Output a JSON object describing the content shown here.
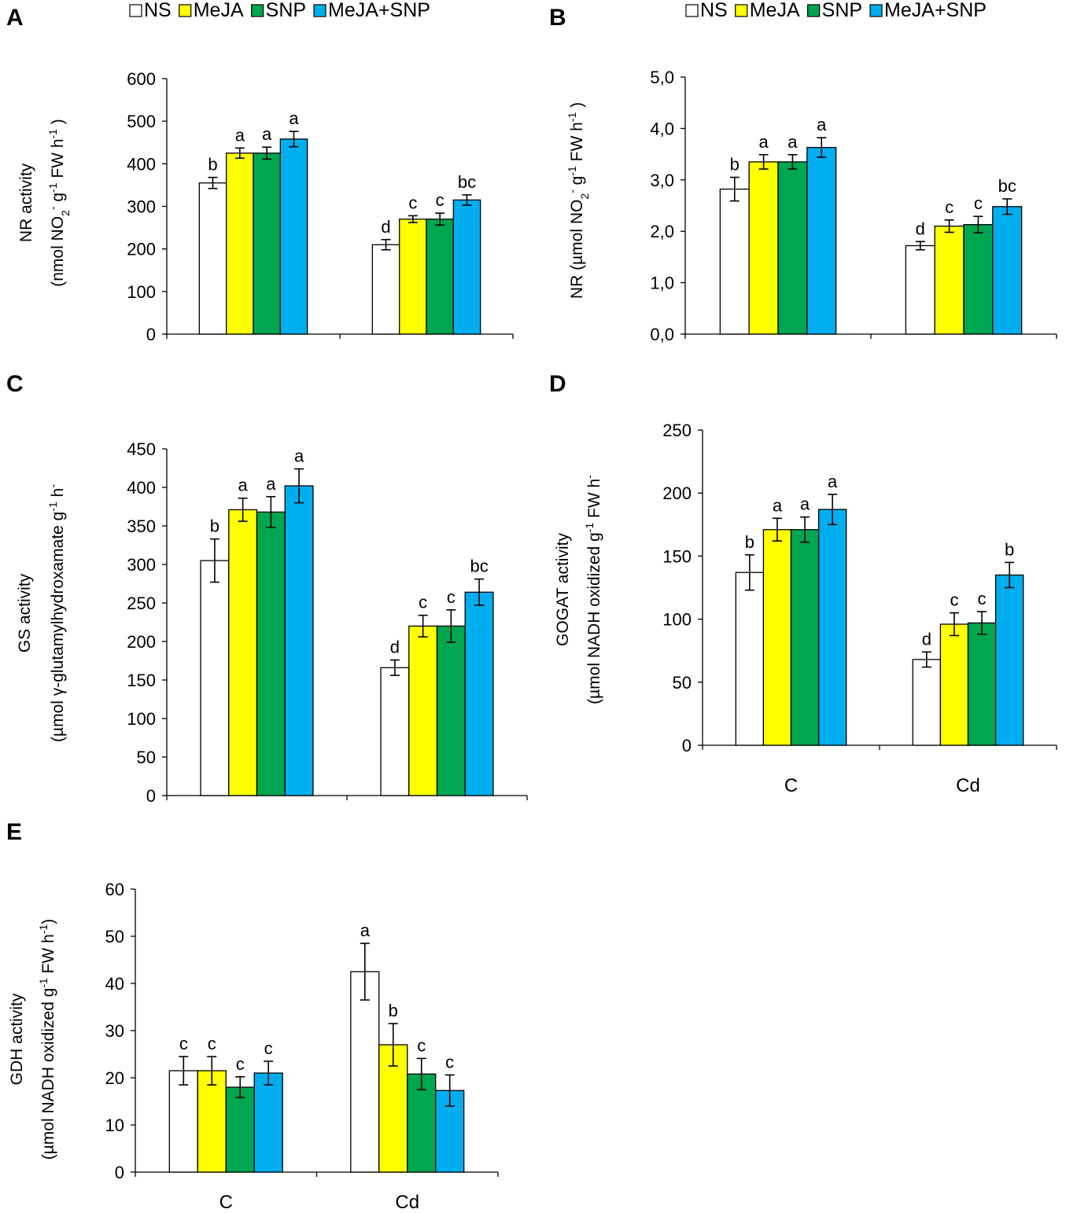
{
  "figure": {
    "legend": [
      {
        "name": "NS",
        "color": "#ffffff"
      },
      {
        "name": "MeJA",
        "color": "#ffff00"
      },
      {
        "name": "SNP",
        "color": "#00a650"
      },
      {
        "name": "MeJA+SNP",
        "color": "#00aeef"
      }
    ]
  },
  "chart_data": [
    {
      "panel": "A",
      "type": "bar",
      "ylabel_line1": "NR activity",
      "ylabel_line2": "(nmol NO2- g-1 FW h-1 )",
      "ylim": [
        0,
        600
      ],
      "yticks": [
        "0",
        "100",
        "200",
        "300",
        "400",
        "500",
        "600"
      ],
      "categories": [
        "C",
        "Cd"
      ],
      "show_category_labels": false,
      "series": [
        {
          "name": "NS",
          "values": [
            355,
            210
          ],
          "errors": [
            13,
            12
          ],
          "letters": [
            "b",
            "d"
          ]
        },
        {
          "name": "MeJA",
          "values": [
            425,
            270
          ],
          "errors": [
            12,
            8
          ],
          "letters": [
            "a",
            "c"
          ]
        },
        {
          "name": "SNP",
          "values": [
            425,
            270
          ],
          "errors": [
            14,
            14
          ],
          "letters": [
            "a",
            "c"
          ]
        },
        {
          "name": "MeJA+SNP",
          "values": [
            458,
            315
          ],
          "errors": [
            18,
            12
          ],
          "letters": [
            "a",
            "bc"
          ]
        }
      ]
    },
    {
      "panel": "B",
      "type": "bar",
      "ylabel_line1": "NR (µmol NO2- g-1 FW h-1 )",
      "ylabel_line2": "",
      "ylim": [
        0,
        5
      ],
      "yticks": [
        "0,0",
        "1,0",
        "2,0",
        "3,0",
        "4,0",
        "5,0"
      ],
      "categories": [
        "C",
        "Cd"
      ],
      "show_category_labels": false,
      "series": [
        {
          "name": "NS",
          "values": [
            2.82,
            1.72
          ],
          "errors": [
            0.23,
            0.08
          ],
          "letters": [
            "b",
            "d"
          ]
        },
        {
          "name": "MeJA",
          "values": [
            3.35,
            2.1
          ],
          "errors": [
            0.14,
            0.12
          ],
          "letters": [
            "a",
            "c"
          ]
        },
        {
          "name": "SNP",
          "values": [
            3.35,
            2.13
          ],
          "errors": [
            0.14,
            0.16
          ],
          "letters": [
            "a",
            "c"
          ]
        },
        {
          "name": "MeJA+SNP",
          "values": [
            3.63,
            2.48
          ],
          "errors": [
            0.19,
            0.15
          ],
          "letters": [
            "a",
            "bc"
          ]
        }
      ]
    },
    {
      "panel": "C",
      "type": "bar",
      "ylabel_line1": "GS activity",
      "ylabel_line2": "(µmol γ-glutamylhydroxamate g-1 h-",
      "ylim": [
        0,
        450
      ],
      "yticks": [
        "0",
        "50",
        "100",
        "150",
        "200",
        "250",
        "300",
        "350",
        "400",
        "450"
      ],
      "categories": [
        "C",
        "Cd"
      ],
      "show_category_labels": false,
      "series": [
        {
          "name": "NS",
          "values": [
            305,
            166
          ],
          "errors": [
            28,
            10
          ],
          "letters": [
            "b",
            "d"
          ]
        },
        {
          "name": "MeJA",
          "values": [
            371,
            220
          ],
          "errors": [
            15,
            14
          ],
          "letters": [
            "a",
            "c"
          ]
        },
        {
          "name": "SNP",
          "values": [
            368,
            220
          ],
          "errors": [
            20,
            21
          ],
          "letters": [
            "a",
            "c"
          ]
        },
        {
          "name": "MeJA+SNP",
          "values": [
            402,
            264
          ],
          "errors": [
            22,
            17
          ],
          "letters": [
            "a",
            "bc"
          ]
        }
      ]
    },
    {
      "panel": "D",
      "type": "bar",
      "ylabel_line1": "GOGAT activity",
      "ylabel_line2": "(µmol NADH oxidized g-1 FW h-",
      "ylim": [
        0,
        250
      ],
      "yticks": [
        "0",
        "50",
        "100",
        "150",
        "200",
        "250"
      ],
      "categories": [
        "C",
        "Cd"
      ],
      "show_category_labels": true,
      "series": [
        {
          "name": "NS",
          "values": [
            137,
            68
          ],
          "errors": [
            14,
            6
          ],
          "letters": [
            "b",
            "d"
          ]
        },
        {
          "name": "MeJA",
          "values": [
            171,
            96
          ],
          "errors": [
            9,
            9
          ],
          "letters": [
            "a",
            "c"
          ]
        },
        {
          "name": "SNP",
          "values": [
            171,
            97
          ],
          "errors": [
            10,
            9
          ],
          "letters": [
            "a",
            "c"
          ]
        },
        {
          "name": "MeJA+SNP",
          "values": [
            187,
            135
          ],
          "errors": [
            12,
            10
          ],
          "letters": [
            "a",
            "b"
          ]
        }
      ]
    },
    {
      "panel": "E",
      "type": "bar",
      "ylabel_line1": "GDH activity",
      "ylabel_line2": "(µmol NADH oxidized g-1 FW h-1)",
      "ylim": [
        0,
        60
      ],
      "yticks": [
        "0",
        "10",
        "20",
        "30",
        "40",
        "50",
        "60"
      ],
      "categories": [
        "C",
        "Cd"
      ],
      "show_category_labels": true,
      "series": [
        {
          "name": "NS",
          "values": [
            21.5,
            42.5
          ],
          "errors": [
            3.0,
            6.0
          ],
          "letters": [
            "c",
            "a"
          ]
        },
        {
          "name": "MeJA",
          "values": [
            21.5,
            27.0
          ],
          "errors": [
            3.0,
            4.5
          ],
          "letters": [
            "c",
            "b"
          ]
        },
        {
          "name": "SNP",
          "values": [
            18.0,
            20.8
          ],
          "errors": [
            2.2,
            3.3
          ],
          "letters": [
            "c",
            "c"
          ]
        },
        {
          "name": "MeJA+SNP",
          "values": [
            21.0,
            17.3
          ],
          "errors": [
            2.5,
            3.3
          ],
          "letters": [
            "c",
            "c"
          ]
        }
      ]
    }
  ]
}
